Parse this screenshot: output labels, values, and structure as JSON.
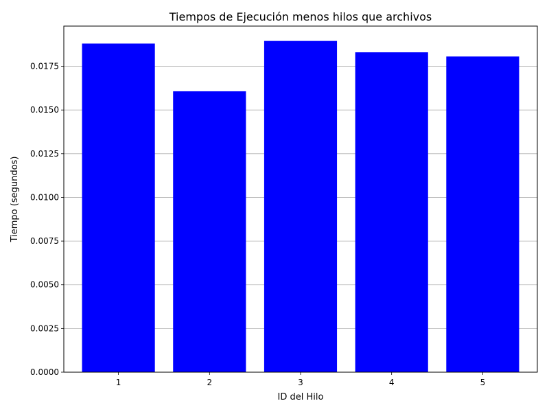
{
  "chart_data": {
    "type": "bar",
    "title": "Tiempos de Ejecución menos hilos que archivos",
    "xlabel": "ID del Hilo",
    "ylabel": "Tiempo (segundos)",
    "categories": [
      "1",
      "2",
      "3",
      "4",
      "5"
    ],
    "values": [
      0.0188,
      0.01607,
      0.01895,
      0.0183,
      0.01806
    ],
    "ylim": [
      0,
      0.0198
    ],
    "yticks": [
      0.0,
      0.0025,
      0.005,
      0.0075,
      0.01,
      0.0125,
      0.015,
      0.0175
    ],
    "ytick_labels": [
      "0.0000",
      "0.0025",
      "0.0050",
      "0.0075",
      "0.0100",
      "0.0125",
      "0.0150",
      "0.0175"
    ],
    "bar_color": "#0000ff",
    "grid": "y-axis horizontal lines",
    "legend": "none"
  }
}
